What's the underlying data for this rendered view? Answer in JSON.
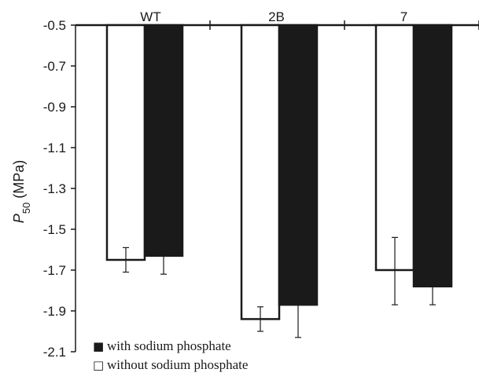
{
  "chart_data": {
    "type": "bar",
    "categories": [
      "WT",
      "2B",
      "7"
    ],
    "ylabel_main": "P",
    "ylabel_sub": "50",
    "ylabel_unit": " (MPa)",
    "ylim": [
      -2.1,
      -0.5
    ],
    "yticks": [
      "-0.5",
      "-0.7",
      "-0.9",
      "-1.1",
      "-1.3",
      "-1.5",
      "-1.7",
      "-1.9",
      "-2.1"
    ],
    "ytick_values": [
      -0.5,
      -0.7,
      -0.9,
      -1.1,
      -1.3,
      -1.5,
      -1.7,
      -1.9,
      -2.1
    ],
    "bar_origin": -0.5,
    "grid": false,
    "legend_position": "bottom-left",
    "series": [
      {
        "name": "without sodium phosphate",
        "symbol": "□",
        "fill": "#ffffff",
        "stroke": "#1a1a1a",
        "values": [
          -1.65,
          -1.94,
          -1.7
        ],
        "err_low": [
          -1.71,
          -2.0,
          -1.87
        ],
        "err_high": [
          -1.59,
          -1.88,
          -1.54
        ]
      },
      {
        "name": "with sodium phosphate",
        "symbol": "■",
        "fill": "#1a1a1a",
        "stroke": "#1a1a1a",
        "values": [
          -1.63,
          -1.87,
          -1.78
        ],
        "err_low": [
          -1.72,
          -2.03,
          -1.87
        ],
        "err_high": [
          -1.63,
          -1.87,
          -1.78
        ]
      }
    ],
    "legend_order": [
      1,
      0
    ]
  }
}
